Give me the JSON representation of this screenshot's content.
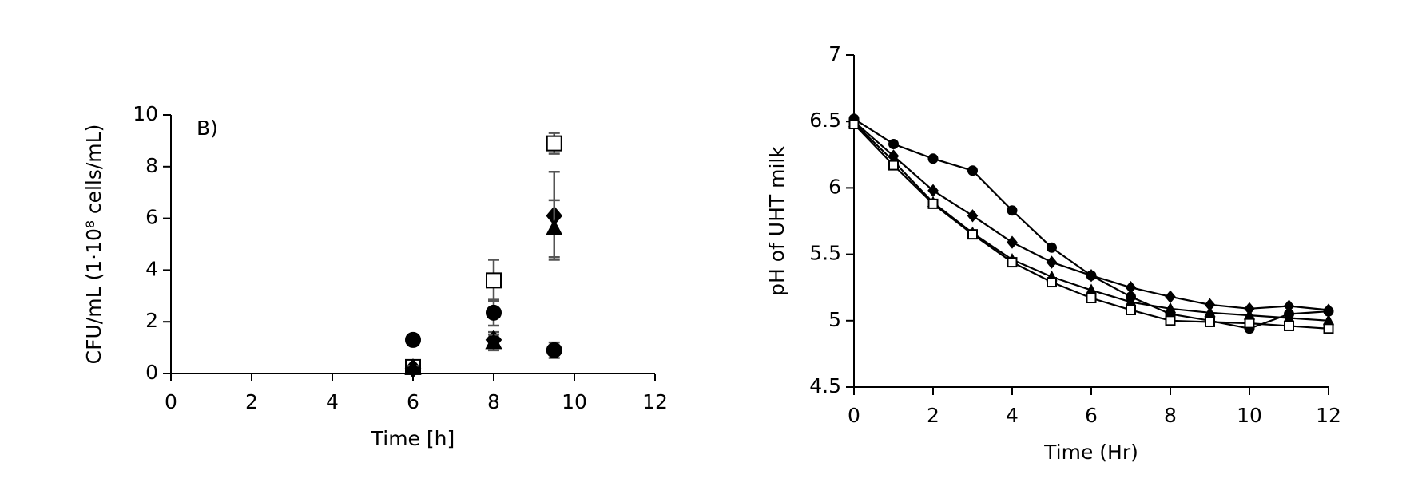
{
  "chart_data": [
    {
      "type": "scatter",
      "annotation": "B)",
      "xlabel": "Time [h]",
      "ylabel": "CFU/mL (1·10⁸ cells/mL)",
      "xlim": [
        0,
        12
      ],
      "xticks": [
        0,
        2,
        4,
        6,
        8,
        10,
        12
      ],
      "ylim": [
        0,
        10
      ],
      "yticks": [
        0,
        2,
        4,
        6,
        8,
        10
      ],
      "x": [
        6,
        8,
        9.5
      ],
      "series": [
        {
          "marker": "square-open",
          "color": "#000000",
          "values": [
            0.25,
            3.6,
            8.9
          ],
          "errors": [
            0.1,
            0.8,
            0.4
          ]
        },
        {
          "marker": "diamond",
          "color": "#000000",
          "values": [
            0.2,
            1.3,
            6.1
          ],
          "errors": [
            0.1,
            0.3,
            1.7
          ]
        },
        {
          "marker": "triangle",
          "color": "#000000",
          "values": [
            0.2,
            1.2,
            5.6
          ],
          "errors": [
            0.1,
            0.3,
            1.1
          ]
        },
        {
          "marker": "circle",
          "color": "#000000",
          "values": [
            1.3,
            2.35,
            0.9
          ],
          "errors": [
            0.05,
            0.5,
            0.3
          ]
        }
      ]
    },
    {
      "type": "line",
      "xlabel": "Time (Hr)",
      "ylabel": "pH of UHT milk",
      "xlim": [
        0,
        12
      ],
      "xticks": [
        0,
        2,
        4,
        6,
        8,
        10,
        12
      ],
      "ylim": [
        4.5,
        7
      ],
      "yticks": [
        4.5,
        5,
        5.5,
        6,
        6.5,
        7
      ],
      "x": [
        0,
        1,
        2,
        3,
        4,
        5,
        6,
        7,
        8,
        9,
        10,
        11,
        12
      ],
      "series": [
        {
          "marker": "circle",
          "color": "#000000",
          "values": [
            6.52,
            6.33,
            6.22,
            6.13,
            5.83,
            5.55,
            5.34,
            5.18,
            5.05,
            5.0,
            4.94,
            5.05,
            5.07
          ]
        },
        {
          "marker": "diamond",
          "color": "#000000",
          "values": [
            6.5,
            6.24,
            5.98,
            5.79,
            5.59,
            5.44,
            5.34,
            5.25,
            5.18,
            5.12,
            5.09,
            5.11,
            5.08
          ]
        },
        {
          "marker": "triangle",
          "color": "#000000",
          "values": [
            6.49,
            6.2,
            5.89,
            5.66,
            5.46,
            5.33,
            5.23,
            5.14,
            5.09,
            5.06,
            5.04,
            5.02,
            5.0
          ]
        },
        {
          "marker": "square-open",
          "color": "#000000",
          "values": [
            6.48,
            6.17,
            5.88,
            5.65,
            5.44,
            5.29,
            5.17,
            5.08,
            5.0,
            4.99,
            4.98,
            4.96,
            4.94
          ]
        }
      ]
    }
  ]
}
